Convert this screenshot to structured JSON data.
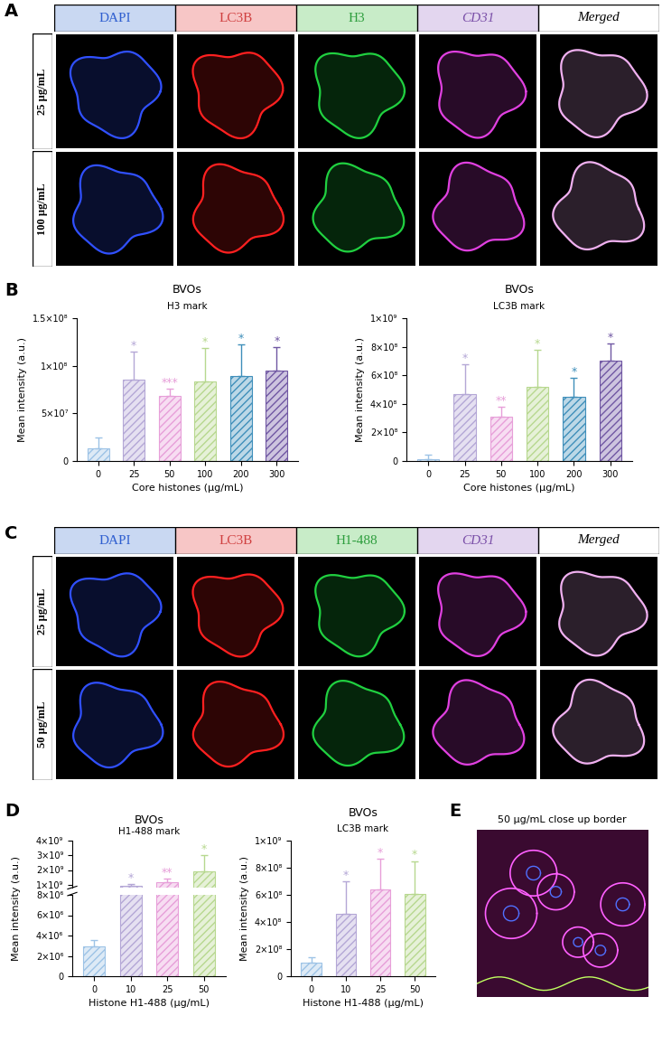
{
  "image_panels": [
    {
      "label": "A",
      "columns": [
        "DAPI",
        "LC3B",
        "H3",
        "CD31",
        "Merged"
      ],
      "rows": [
        "25 µg/mL",
        "100 µg/mL"
      ]
    },
    {
      "label": "C",
      "columns": [
        "DAPI",
        "LC3B",
        "H1-488",
        "CD31",
        "Merged"
      ],
      "rows": [
        "25 µg/mL",
        "50 µg/mL"
      ]
    },
    {
      "label": "E",
      "title": "50 µg/mL close up border"
    }
  ],
  "chart_data": [
    {
      "type": "bar",
      "panel": "B",
      "title": "BVOs",
      "subtitle": "H3 mark",
      "x_label": "Core histones (µg/mL)",
      "y_label": "Mean intensity (a.u.)",
      "categories": [
        "0",
        "25",
        "50",
        "100",
        "200",
        "300"
      ],
      "values": [
        13000000,
        85000000,
        68000000,
        84000000,
        89000000,
        95000000
      ],
      "errors": [
        12000000,
        30000000,
        8000000,
        35000000,
        33000000,
        25000000
      ],
      "annotations": [
        null,
        "*",
        "***",
        "*",
        "*",
        "*"
      ],
      "colors": [
        "#9dc3e6",
        "#b4a7d6",
        "#e79fd9",
        "#b7d88f",
        "#3f8fba",
        "#7057a3"
      ],
      "ylim": [
        0,
        150000000
      ],
      "yticks": [
        0,
        {
          "value": 50000000,
          "label": "5×10⁷"
        },
        {
          "value": 100000000,
          "label": "1×10⁸"
        },
        {
          "value": 150000000,
          "label": "1.5×10⁸"
        }
      ]
    },
    {
      "type": "bar",
      "panel": "B",
      "title": "BVOs",
      "subtitle": "LC3B mark",
      "x_label": "Core histones (µg/mL)",
      "y_label": "Mean intensity (a.u.)",
      "categories": [
        "0",
        "25",
        "50",
        "100",
        "200",
        "300"
      ],
      "values": [
        15000000,
        470000000,
        310000000,
        520000000,
        450000000,
        700000000
      ],
      "errors": [
        30000000,
        210000000,
        70000000,
        260000000,
        130000000,
        120000000
      ],
      "annotations": [
        null,
        "*",
        "**",
        "*",
        "*",
        "*"
      ],
      "colors": [
        "#9dc3e6",
        "#b4a7d6",
        "#e79fd9",
        "#b7d88f",
        "#3f8fba",
        "#7057a3"
      ],
      "ylim": [
        0,
        1000000000
      ],
      "yticks": [
        0,
        {
          "value": 200000000,
          "label": "2×10⁸"
        },
        {
          "value": 400000000,
          "label": "4×10⁸"
        },
        {
          "value": 600000000,
          "label": "6×10⁸"
        },
        {
          "value": 800000000,
          "label": "8×10⁸"
        },
        {
          "value": 1000000000,
          "label": "1×10⁹"
        }
      ]
    },
    {
      "type": "bar",
      "panel": "D",
      "title": "BVOs",
      "subtitle": "H1-488 mark",
      "x_label": "Histone H1-488 (µg/mL)",
      "y_label": "Mean intensity (a.u.)",
      "categories": [
        "0",
        "10",
        "25",
        "50"
      ],
      "values": [
        2900000,
        900000000,
        1200000000,
        1900000000
      ],
      "errors": [
        700000,
        150000000,
        200000000,
        1100000000
      ],
      "annotations": [
        null,
        "*",
        "**",
        "*"
      ],
      "colors": [
        "#9dc3e6",
        "#b4a7d6",
        "#e79fd9",
        "#b7d88f"
      ],
      "axis_segments": [
        {
          "ylim": [
            0,
            8000000
          ],
          "yticks": [
            0,
            {
              "value": 2000000,
              "label": "2×10⁶"
            },
            {
              "value": 4000000,
              "label": "4×10⁶"
            },
            {
              "value": 6000000,
              "label": "6×10⁶"
            },
            {
              "value": 8000000,
              "label": "8×10⁶"
            }
          ]
        },
        {
          "ylim": [
            800000000,
            4000000000
          ],
          "yticks": [
            {
              "value": 1000000000,
              "label": "1×10⁹"
            },
            {
              "value": 2000000000,
              "label": "2×10⁹"
            },
            {
              "value": 3000000000,
              "label": "3×10⁹"
            },
            {
              "value": 4000000000,
              "label": "4×10⁹"
            }
          ]
        }
      ]
    },
    {
      "type": "bar",
      "panel": "D",
      "title": "BVOs",
      "subtitle": "LC3B mark",
      "x_label": "Histone H1-488 (µg/mL)",
      "y_label": "Mean intensity (a.u.)",
      "categories": [
        "0",
        "10",
        "25",
        "50"
      ],
      "values": [
        100000000,
        460000000,
        640000000,
        610000000
      ],
      "errors": [
        40000000,
        240000000,
        230000000,
        240000000
      ],
      "annotations": [
        null,
        "*",
        "*",
        "*"
      ],
      "colors": [
        "#9dc3e6",
        "#b4a7d6",
        "#e79fd9",
        "#b7d88f"
      ],
      "ylim": [
        0,
        1000000000
      ],
      "yticks": [
        0,
        {
          "value": 200000000,
          "label": "2×10⁸"
        },
        {
          "value": 400000000,
          "label": "4×10⁸"
        },
        {
          "value": 600000000,
          "label": "6×10⁸"
        },
        {
          "value": 800000000,
          "label": "8×10⁸"
        },
        {
          "value": 1000000000,
          "label": "1×10⁹"
        }
      ]
    }
  ]
}
